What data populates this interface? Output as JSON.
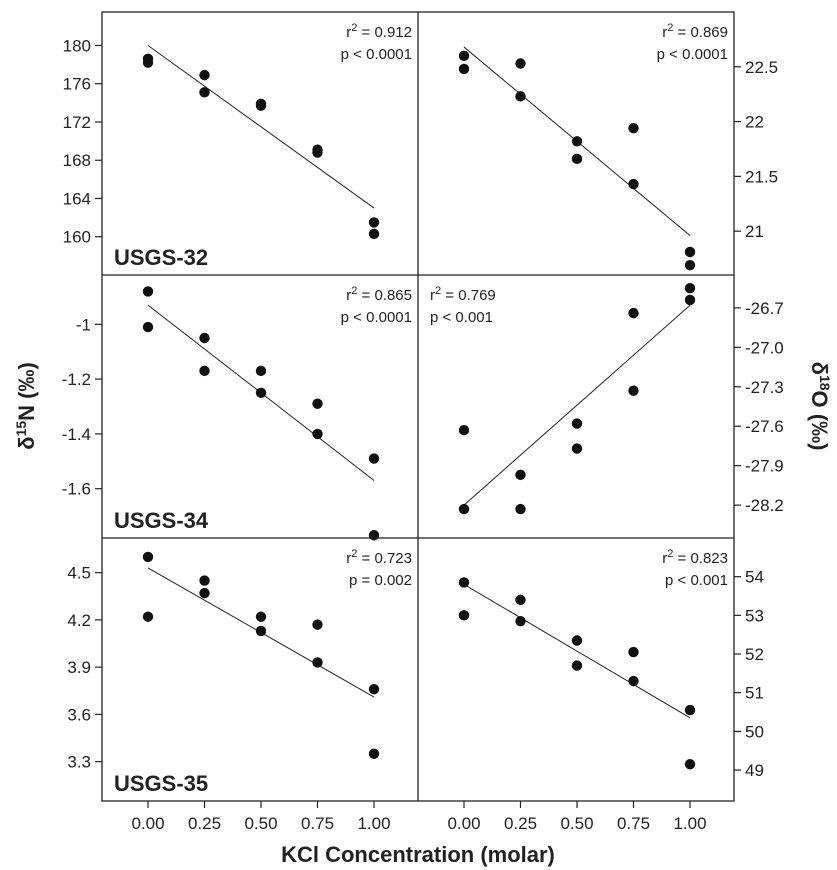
{
  "figure": {
    "xlabel": "KCl Concentration (molar)",
    "left_ylabel": {
      "prefix": "δ",
      "sup": "15",
      "suffix": "N (‰)"
    },
    "right_ylabel": {
      "prefix": "δ",
      "sup": "18",
      "suffix": "O (‰)"
    },
    "x_ticks": [
      "0.00",
      "0.25",
      "0.50",
      "0.75",
      "1.00"
    ]
  },
  "chart_data": [
    {
      "type": "scatter",
      "row": 0,
      "col": 0,
      "sample": "USGS-32",
      "isotope": "δ15N",
      "ylim": [
        156,
        183.5
      ],
      "yticks": [
        160,
        164,
        168,
        172,
        176,
        180
      ],
      "y_tick_side": "left",
      "x": [
        0,
        0,
        0.25,
        0.25,
        0.5,
        0.5,
        0.75,
        0.75,
        1,
        1
      ],
      "y": [
        178.6,
        178.2,
        176.9,
        175.1,
        173.9,
        173.7,
        169.1,
        168.8,
        161.5,
        160.3
      ],
      "fit": {
        "x": [
          0,
          1
        ],
        "y": [
          180.0,
          163.0
        ]
      },
      "stats": {
        "r2_label": "r",
        "r2_sup": "2",
        "r2_value": " = 0.912",
        "p_text": "p < 0.0001"
      },
      "stats_position": "top-right"
    },
    {
      "type": "scatter",
      "row": 0,
      "col": 1,
      "isotope": "δ18O",
      "ylim": [
        20.6,
        23.0
      ],
      "yticks": [
        21.0,
        21.5,
        22.0,
        22.5
      ],
      "y_tick_side": "right",
      "x": [
        0,
        0,
        0.25,
        0.25,
        0.5,
        0.5,
        0.75,
        0.75,
        1,
        1
      ],
      "y": [
        22.6,
        22.48,
        22.53,
        22.23,
        21.82,
        21.66,
        21.94,
        21.43,
        20.81,
        20.69
      ],
      "fit": {
        "x": [
          0,
          1
        ],
        "y": [
          22.68,
          20.96
        ]
      },
      "stats": {
        "r2_label": "r",
        "r2_sup": "2",
        "r2_value": " = 0.869",
        "p_text": "p < 0.0001"
      },
      "stats_position": "top-right"
    },
    {
      "type": "scatter",
      "row": 1,
      "col": 0,
      "sample": "USGS-34",
      "isotope": "δ15N",
      "ylim": [
        -1.78,
        -0.82
      ],
      "yticks": [
        -1.6,
        -1.4,
        -1.2,
        -1.0
      ],
      "y_tick_side": "left",
      "x": [
        0,
        0,
        0.25,
        0.25,
        0.5,
        0.5,
        0.75,
        0.75,
        1,
        1
      ],
      "y": [
        -0.88,
        -1.01,
        -1.05,
        -1.17,
        -1.17,
        -1.25,
        -1.29,
        -1.4,
        -1.49,
        -1.77
      ],
      "fit": {
        "x": [
          0,
          1
        ],
        "y": [
          -0.93,
          -1.57
        ]
      },
      "stats": {
        "r2_label": "r",
        "r2_sup": "2",
        "r2_value": " = 0.865",
        "p_text": "p < 0.0001"
      },
      "stats_position": "top-right"
    },
    {
      "type": "scatter",
      "row": 1,
      "col": 1,
      "isotope": "δ18O",
      "ylim": [
        -28.45,
        -26.45
      ],
      "yticks": [
        -28.2,
        -27.9,
        -27.6,
        -27.3,
        -27.0,
        -26.7
      ],
      "y_tick_labels": [
        "-28.2",
        "-27.9",
        "-27.6",
        "-27.3",
        "-27.0",
        "-26.7"
      ],
      "y_tick_side": "right",
      "x": [
        0,
        0,
        0.25,
        0.25,
        0.5,
        0.5,
        0.75,
        0.75,
        1,
        1
      ],
      "y": [
        -27.63,
        -28.23,
        -27.97,
        -28.23,
        -27.58,
        -27.77,
        -26.74,
        -27.33,
        -26.55,
        -26.64
      ],
      "fit": {
        "x": [
          0,
          1
        ],
        "y": [
          -28.2,
          -26.68
        ]
      },
      "stats": {
        "r2_label": "r",
        "r2_sup": "2",
        "r2_value": " = 0.769",
        "p_text": "p < 0.001"
      },
      "stats_position": "top-left"
    },
    {
      "type": "scatter",
      "row": 2,
      "col": 0,
      "sample": "USGS-35",
      "isotope": "δ15N",
      "ylim": [
        3.05,
        4.72
      ],
      "yticks": [
        3.3,
        3.6,
        3.9,
        4.2,
        4.5
      ],
      "y_tick_labels": [
        "3.3",
        "3.6",
        "3.9",
        "4.2",
        "4.5"
      ],
      "y_tick_side": "left",
      "x": [
        0,
        0,
        0.25,
        0.25,
        0.5,
        0.5,
        0.75,
        0.75,
        1,
        1
      ],
      "y": [
        4.6,
        4.22,
        4.45,
        4.37,
        4.22,
        4.13,
        4.17,
        3.93,
        3.76,
        3.35
      ],
      "fit": {
        "x": [
          0,
          1
        ],
        "y": [
          4.53,
          3.71
        ]
      },
      "stats": {
        "r2_label": "r",
        "r2_sup": "2",
        "r2_value": " = 0.723",
        "p_text": "p = 0.002"
      },
      "stats_position": "top-right"
    },
    {
      "type": "scatter",
      "row": 2,
      "col": 1,
      "isotope": "δ18O",
      "ylim": [
        48.2,
        55.0
      ],
      "yticks": [
        49,
        50,
        51,
        52,
        53,
        54
      ],
      "y_tick_side": "right",
      "x": [
        0,
        0,
        0.25,
        0.25,
        0.5,
        0.5,
        0.75,
        0.75,
        1,
        1
      ],
      "y": [
        53.85,
        53.0,
        53.4,
        52.85,
        52.35,
        51.7,
        52.05,
        51.3,
        50.55,
        49.15
      ],
      "fit": {
        "x": [
          0,
          1
        ],
        "y": [
          53.8,
          50.35
        ]
      },
      "stats": {
        "r2_label": "r",
        "r2_sup": "2",
        "r2_value": " = 0.823",
        "p_text": "p < 0.001"
      },
      "stats_position": "top-right"
    }
  ]
}
